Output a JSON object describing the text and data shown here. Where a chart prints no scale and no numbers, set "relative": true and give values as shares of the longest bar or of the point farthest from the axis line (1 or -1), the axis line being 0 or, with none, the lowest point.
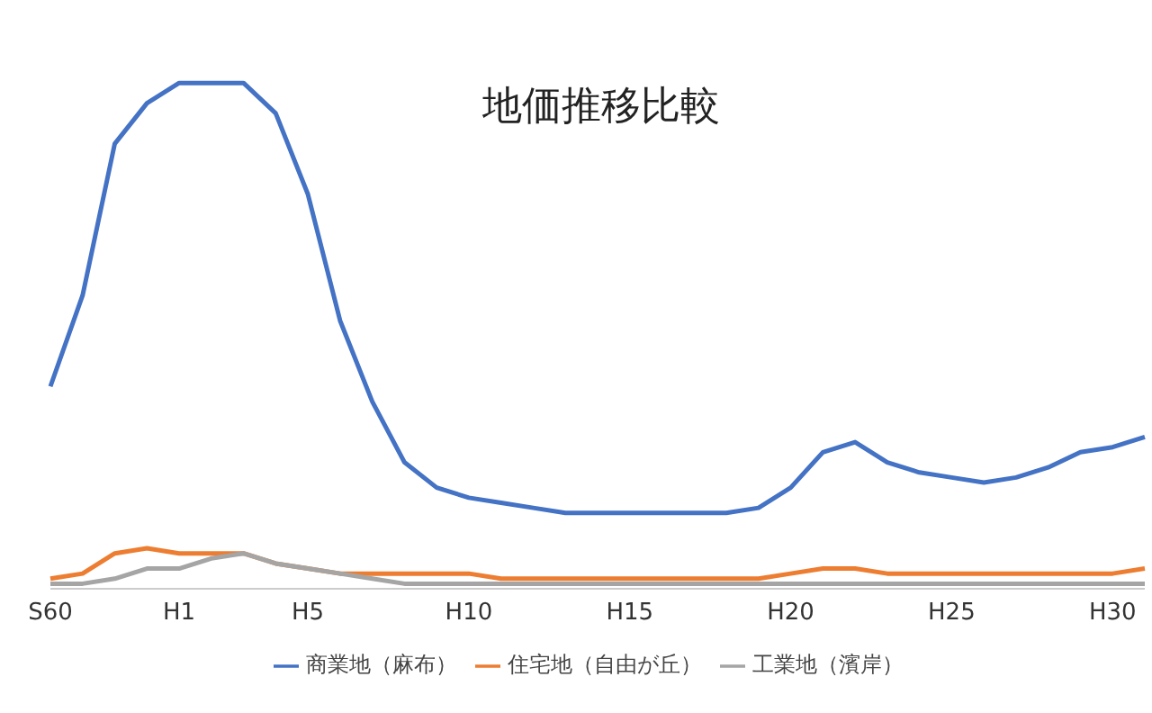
{
  "chart_data": {
    "type": "line",
    "title": "地価推移比較",
    "relative": true,
    "legend": "bottom",
    "marker": "none",
    "line_style": "solid",
    "categories": [
      "S60",
      null,
      null,
      null,
      "H1",
      null,
      null,
      null,
      "H5",
      null,
      null,
      null,
      null,
      "H10",
      null,
      null,
      null,
      null,
      "H15",
      null,
      null,
      null,
      null,
      "H20",
      null,
      null,
      null,
      null,
      "H25",
      null,
      null,
      null,
      null,
      "H30",
      null
    ],
    "series": [
      {
        "name": "商業地（麻布）",
        "color": "#4472c4",
        "values": [
          0.4,
          0.58,
          0.88,
          0.96,
          1,
          1,
          1,
          0.94,
          0.78,
          0.53,
          0.37,
          0.25,
          0.2,
          0.18,
          0.17,
          0.16,
          0.15,
          0.15,
          0.15,
          0.15,
          0.15,
          0.15,
          0.16,
          0.2,
          0.27,
          0.29,
          0.25,
          0.23,
          0.22,
          0.21,
          0.22,
          0.24,
          0.27,
          0.28,
          0.3
        ]
      },
      {
        "name": "住宅地（自由が丘）",
        "color": "#ed7d31",
        "values": [
          0.02,
          0.03,
          0.07,
          0.08,
          0.07,
          0.07,
          0.07,
          0.05,
          0.04,
          0.03,
          0.03,
          0.03,
          0.03,
          0.03,
          0.02,
          0.02,
          0.02,
          0.02,
          0.02,
          0.02,
          0.02,
          0.02,
          0.02,
          0.03,
          0.04,
          0.04,
          0.03,
          0.03,
          0.03,
          0.03,
          0.03,
          0.03,
          0.03,
          0.03,
          0.04
        ]
      },
      {
        "name": "工業地（濱岸）",
        "color": "#a5a5a5",
        "values": [
          0.01,
          0.01,
          0.02,
          0.04,
          0.04,
          0.06,
          0.07,
          0.05,
          0.04,
          0.03,
          0.02,
          0.01,
          0.01,
          0.01,
          0.01,
          0.01,
          0.01,
          0.01,
          0.01,
          0.01,
          0.01,
          0.01,
          0.01,
          0.01,
          0.01,
          0.01,
          0.01,
          0.01,
          0.01,
          0.01,
          0.01,
          0.01,
          0.01,
          0.01,
          0.01
        ]
      }
    ]
  }
}
